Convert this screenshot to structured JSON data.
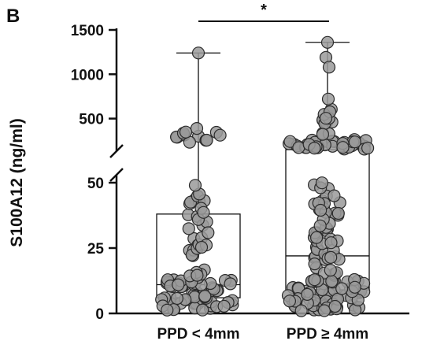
{
  "panel_label": "B",
  "chart_data": {
    "type": "box-scatter",
    "ylabel": "S100A12 (ng/ml)",
    "yaxis": {
      "broken": true,
      "lower_segment": {
        "range": [
          0,
          55
        ],
        "ticks": [
          0,
          25,
          50
        ]
      },
      "upper_segment": {
        "range": [
          150,
          1500
        ],
        "ticks": [
          500,
          1000,
          1500
        ]
      }
    },
    "categories": [
      "PPD < 4mm",
      "PPD ≥ 4mm"
    ],
    "boxes": [
      {
        "name": "PPD < 4mm",
        "min": 0,
        "q1": 6,
        "median": 11,
        "q3": 38,
        "max": 1240
      },
      {
        "name": "PPD ≥ 4mm",
        "min": 0,
        "q1": 9,
        "median": 22,
        "q3": 150,
        "max": 1360
      }
    ],
    "significance": {
      "between": [
        "PPD < 4mm",
        "PPD ≥ 4mm"
      ],
      "label": "*"
    },
    "colors": {
      "marker_fill": "#9a9a9a",
      "marker_edge": "#2b2b2b",
      "axis": "#111111"
    }
  }
}
